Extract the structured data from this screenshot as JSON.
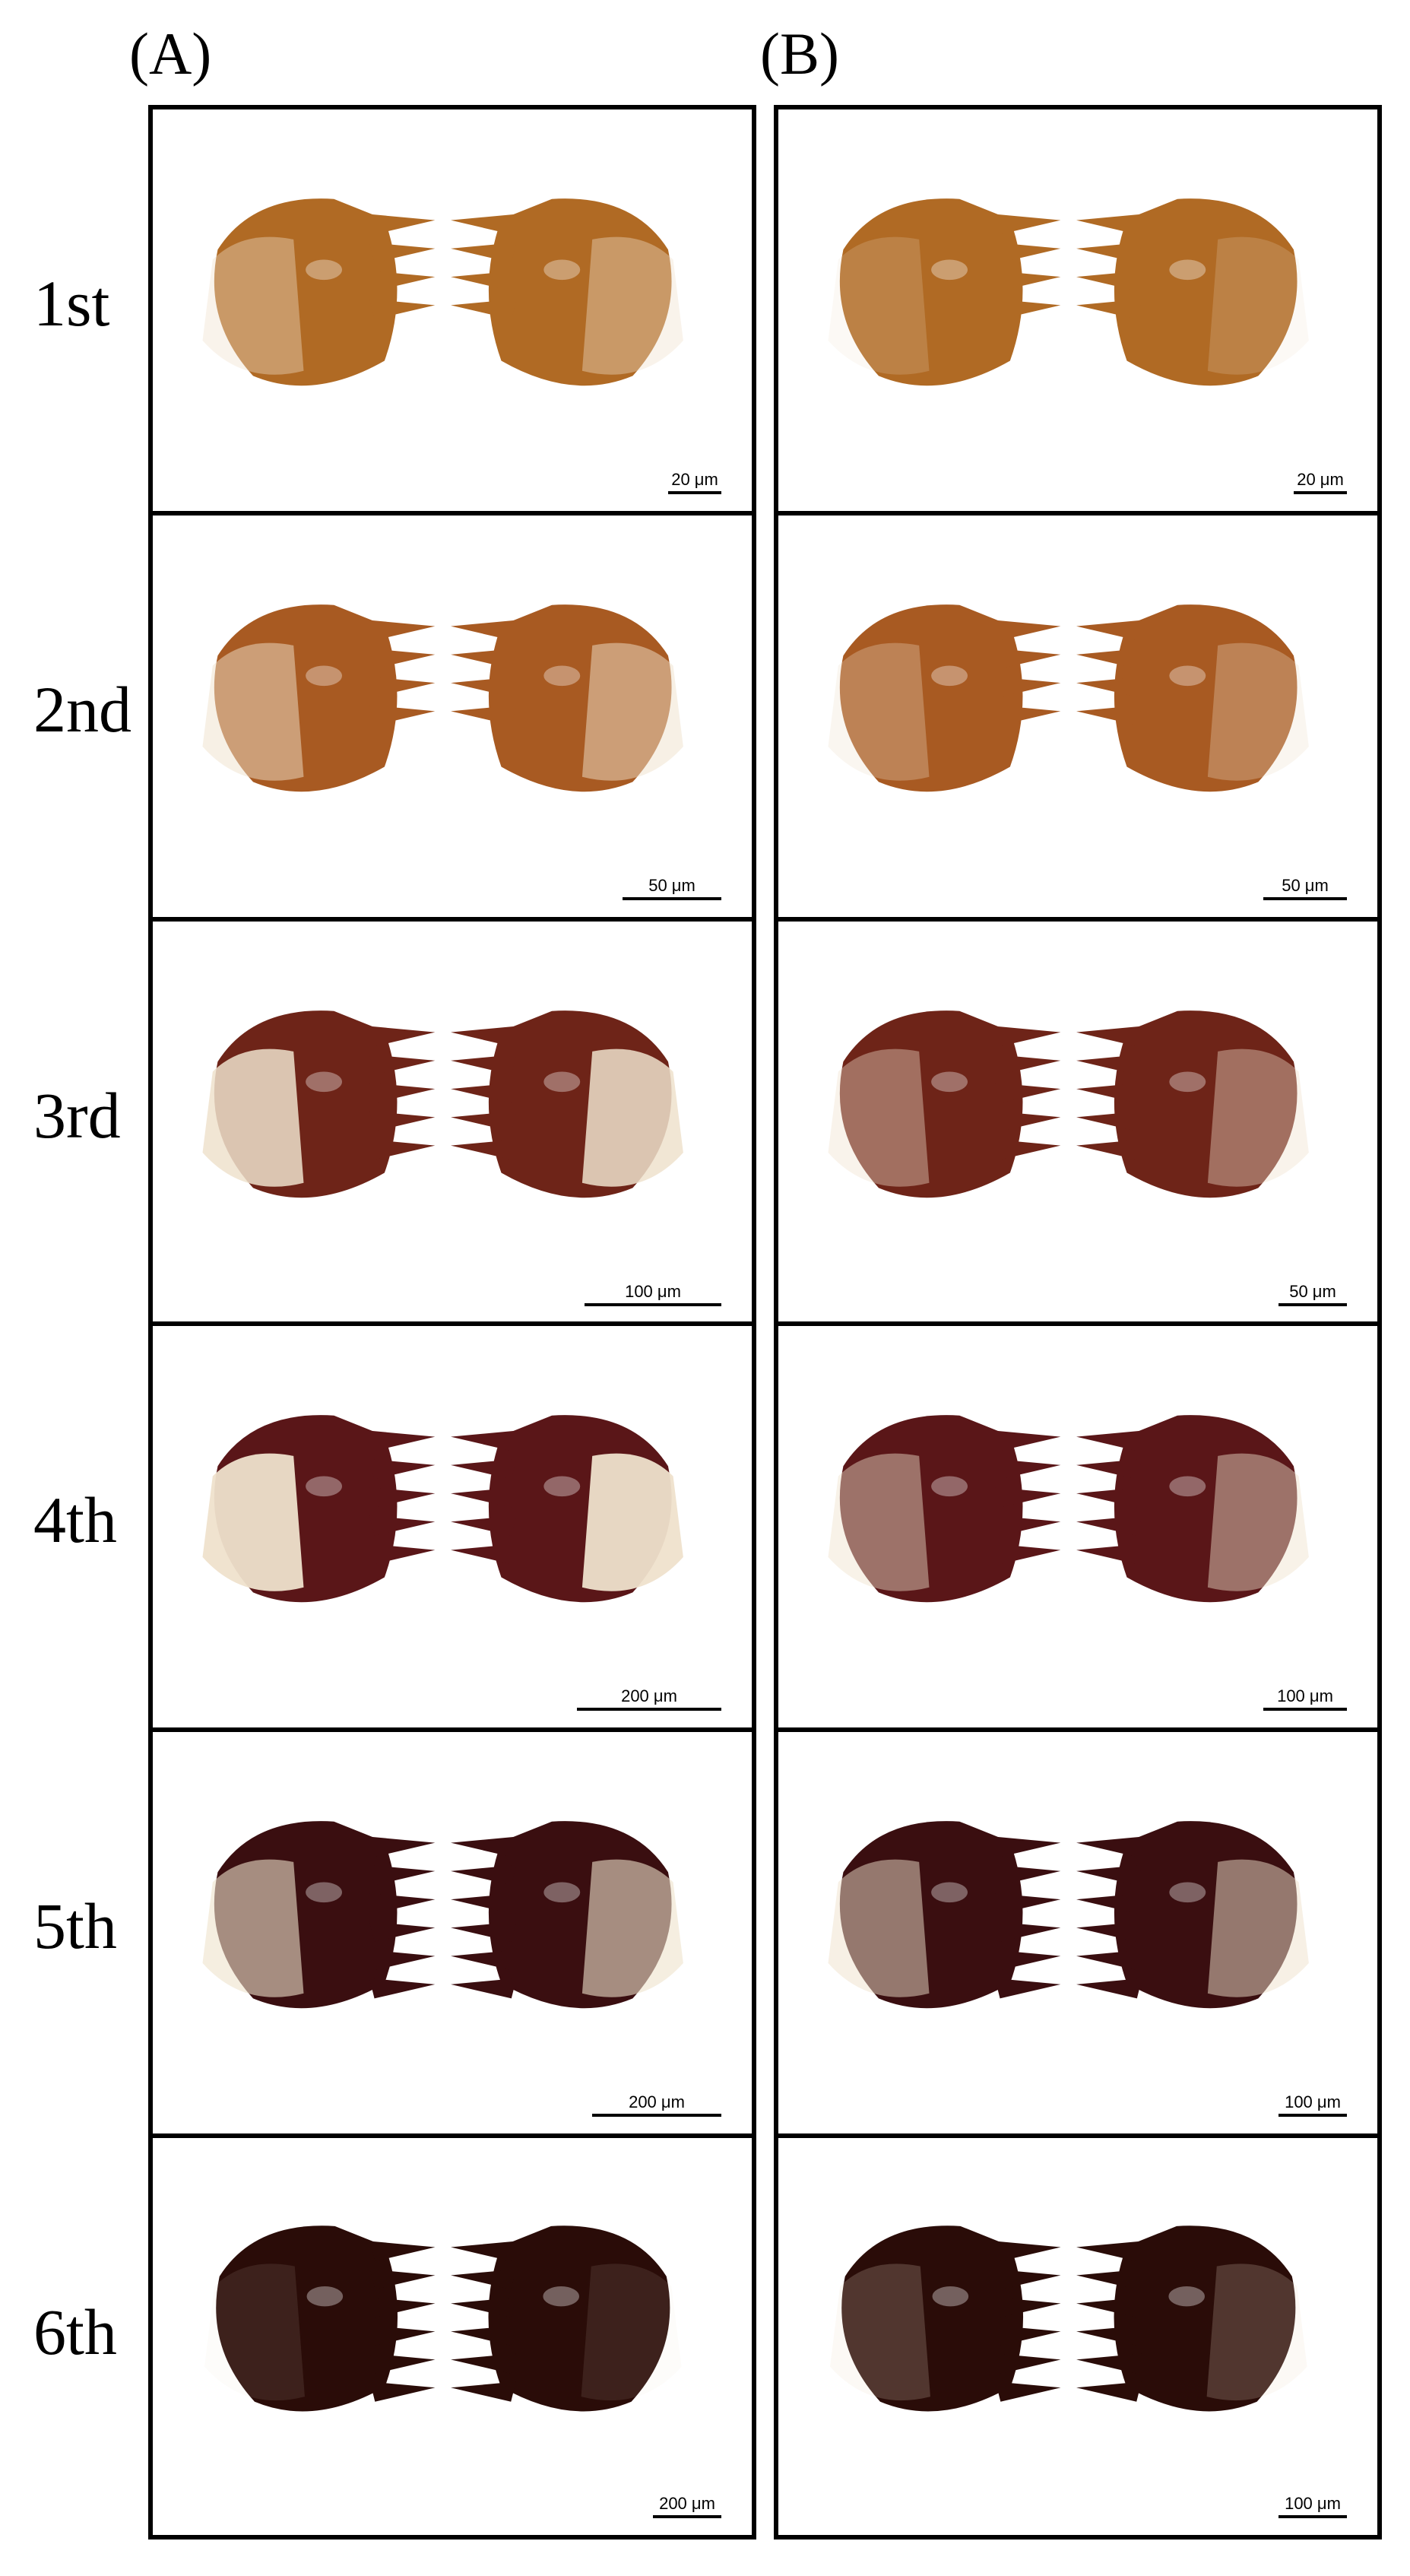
{
  "columns": [
    {
      "label": "(A)",
      "scale_bars": [
        "20 μm",
        "50 μm",
        "100 μm",
        "200 μm",
        "200 μm",
        "200 μm"
      ]
    },
    {
      "label": "(B)",
      "scale_bars": [
        "20 μm",
        "50 μm",
        "50 μm",
        "100 μm",
        "100 μm",
        "100 μm"
      ]
    }
  ],
  "rows": [
    {
      "label": "1st"
    },
    {
      "label": "2nd"
    },
    {
      "label": "3rd"
    },
    {
      "label": "4th"
    },
    {
      "label": "5th"
    },
    {
      "label": "6th"
    }
  ],
  "colors": {
    "instar_1": "#b06a24",
    "instar_2": "#a85a22",
    "instar_3": "#6e2418",
    "instar_4": "#5a1618",
    "instar_5": "#3a0e10",
    "instar_6": "#2a0c08",
    "membrane": "#efe2cc"
  }
}
